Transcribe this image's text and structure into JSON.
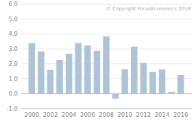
{
  "chart_data": {
    "type": "bar",
    "x": [
      2000,
      2001,
      2002,
      2003,
      2004,
      2005,
      2006,
      2007,
      2008,
      2009,
      2010,
      2011,
      2012,
      2013,
      2014,
      2015,
      2016
    ],
    "values": [
      3.38,
      2.83,
      1.59,
      2.27,
      2.68,
      3.39,
      3.23,
      2.88,
      3.84,
      -0.34,
      1.64,
      3.16,
      2.07,
      1.46,
      1.62,
      0.12,
      1.26
    ],
    "color": "#adc4d8",
    "annotation": "© Copyright FocusEconomics  2018",
    "xlim": [
      1998.8,
      2017.2
    ],
    "xticks": [
      2000,
      2002,
      2004,
      2006,
      2008,
      2010,
      2012,
      2014,
      2016
    ],
    "ylim": [
      -1.0,
      6.0
    ],
    "yticks": [
      {
        "value": -1.0,
        "label": "-1.0"
      },
      {
        "value": 0.0,
        "label": "0.0"
      },
      {
        "value": 1.0,
        "label": "1.0"
      },
      {
        "value": 2.0,
        "label": "2.0"
      },
      {
        "value": 3.0,
        "label": "3.0"
      },
      {
        "value": 4.0,
        "label": "4.0"
      },
      {
        "value": 5.0,
        "label": "5.0"
      },
      {
        "value": 6.0,
        "label": "6.0"
      }
    ],
    "grid": true
  }
}
